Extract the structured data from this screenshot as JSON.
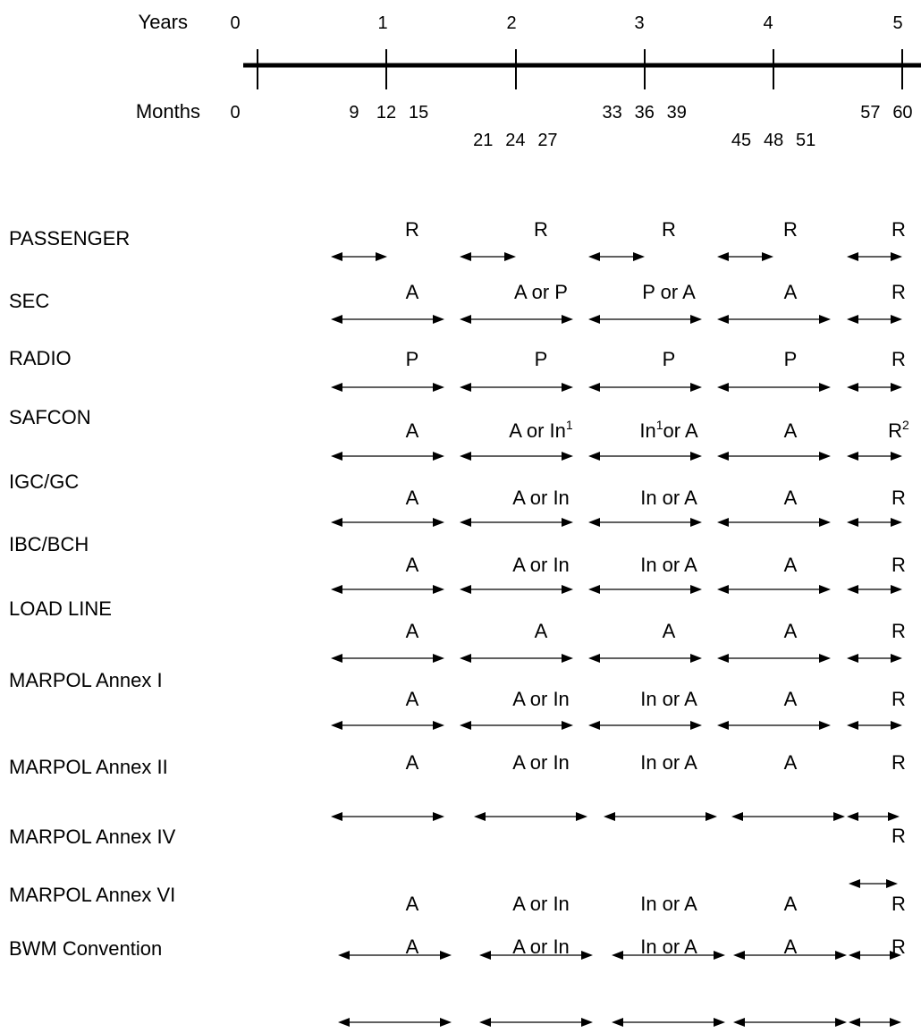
{
  "timeline": {
    "years_label": "Years",
    "months_label": "Months",
    "years": [
      "0",
      "1",
      "2",
      "3",
      "4",
      "5"
    ],
    "months": [
      {
        "label": "0",
        "month": 0,
        "row": 1
      },
      {
        "label": "9",
        "month": 9,
        "row": 1
      },
      {
        "label": "12",
        "month": 12,
        "row": 1
      },
      {
        "label": "15",
        "month": 15,
        "row": 1
      },
      {
        "label": "21",
        "month": 21,
        "row": 2
      },
      {
        "label": "24",
        "month": 24,
        "row": 2
      },
      {
        "label": "27",
        "month": 27,
        "row": 2
      },
      {
        "label": "33",
        "month": 33,
        "row": 1
      },
      {
        "label": "36",
        "month": 36,
        "row": 1
      },
      {
        "label": "39",
        "month": 39,
        "row": 1
      },
      {
        "label": "45",
        "month": 45,
        "row": 2
      },
      {
        "label": "48",
        "month": 48,
        "row": 2
      },
      {
        "label": "51",
        "month": 51,
        "row": 2
      },
      {
        "label": "57",
        "month": 57,
        "row": 1
      },
      {
        "label": "60",
        "month": 60,
        "row": 1
      }
    ]
  },
  "rows": [
    {
      "name": "PASSENGER"
    },
    {
      "name": "SEC"
    },
    {
      "name": "RADIO"
    },
    {
      "name": "SAFCON"
    },
    {
      "name": "IGC/GC"
    },
    {
      "name": "IBC/BCH"
    },
    {
      "name": "LOAD LINE"
    },
    {
      "name": "MARPOL Annex I"
    },
    {
      "name": "MARPOL Annex II"
    },
    {
      "name": "MARPOL Annex IV"
    },
    {
      "name": "MARPOL Annex VI"
    },
    {
      "name": "BWM Convention"
    }
  ],
  "survey_labels": [
    {
      "row": "PASSENGER",
      "items": [
        "R",
        "R",
        "R",
        "R",
        "R"
      ]
    },
    {
      "row": "SEC",
      "items": [
        "A",
        "A or P",
        "P or A",
        "A",
        "R"
      ]
    },
    {
      "row": "RADIO",
      "items": [
        "P",
        "P",
        "P",
        "P",
        "R"
      ]
    },
    {
      "row": "SAFCON",
      "items": [
        "A",
        "A or In",
        "In",
        "A",
        "R"
      ],
      "sup": [
        "",
        "1",
        "1",
        "",
        "2"
      ],
      "suffix": [
        "",
        "",
        "or A",
        "",
        ""
      ]
    },
    {
      "row": "IGC/GC",
      "items": [
        "A",
        "A or In",
        "In or A",
        "A",
        "R"
      ]
    },
    {
      "row": "IBC/BCH",
      "items": [
        "A",
        "A or In",
        "In or A",
        "A",
        "R"
      ]
    },
    {
      "row": "LOAD LINE",
      "items": [
        "A",
        "A",
        "A",
        "A",
        "R"
      ]
    },
    {
      "row": "MARPOL Annex I",
      "items": [
        "A",
        "A or In",
        "In or A",
        "A",
        "R"
      ]
    },
    {
      "row": "MARPOL Annex II",
      "items": [
        "A",
        "A or In",
        "In or A",
        "A",
        "R"
      ]
    },
    {
      "row": "MARPOL Annex IV",
      "items": [
        "",
        "",
        "",
        "",
        "R"
      ]
    },
    {
      "row": "MARPOL Annex VI",
      "items": [
        "A",
        "A or In",
        "In or A",
        "A",
        "R"
      ]
    },
    {
      "row": "BWM Convention",
      "items": [
        "A",
        "A or In",
        "In or A",
        "A",
        "R"
      ]
    }
  ],
  "colors": {
    "ink": "#000000",
    "background": "#ffffff"
  }
}
